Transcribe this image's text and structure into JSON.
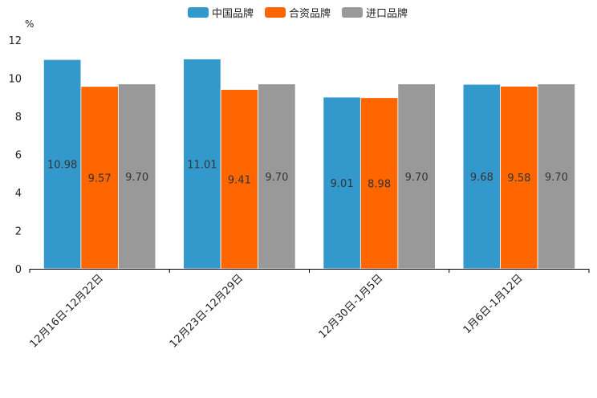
{
  "chart_data": {
    "type": "bar",
    "title": "",
    "xlabel": "",
    "ylabel": "%",
    "ylim": [
      0,
      12
    ],
    "yticks": [
      0,
      2,
      4,
      6,
      8,
      10,
      12
    ],
    "grid": false,
    "legend_position": "top-center",
    "categories": [
      "12月16日-12月22日",
      "12月23日-12月29日",
      "12月30日-1月5日",
      "1月6日-1月12日"
    ],
    "series": [
      {
        "name": "中国品牌",
        "color": "#3399cc",
        "values": [
          10.98,
          11.01,
          9.01,
          9.68
        ],
        "labels": [
          "10.98",
          "11.01",
          "9.01",
          "9.68"
        ]
      },
      {
        "name": "合资品牌",
        "color": "#ff6600",
        "values": [
          9.57,
          9.41,
          8.98,
          9.58
        ],
        "labels": [
          "9.57",
          "9.41",
          "8.98",
          "9.58"
        ]
      },
      {
        "name": "进口品牌",
        "color": "#999999",
        "values": [
          9.7,
          9.7,
          9.7,
          9.7
        ],
        "labels": [
          "9.70",
          "9.70",
          "9.70",
          "9.70"
        ]
      }
    ]
  }
}
